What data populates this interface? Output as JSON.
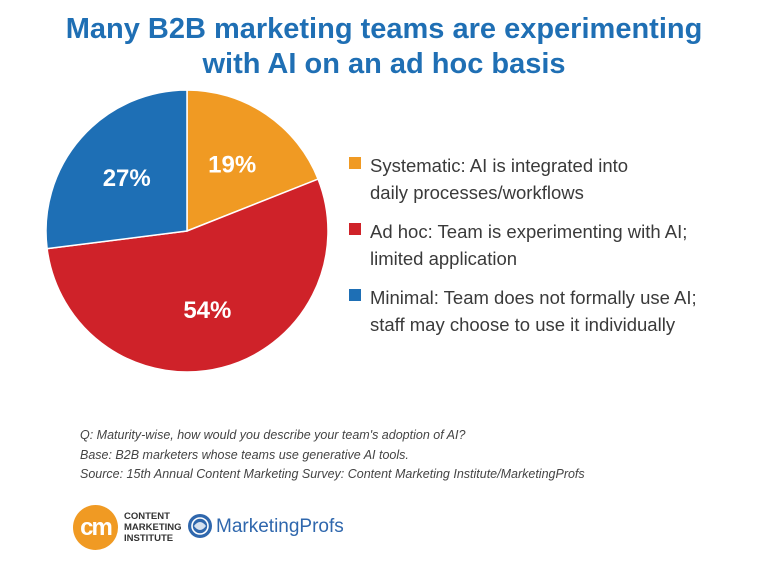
{
  "title": {
    "line1": "Many B2B marketing teams are experimenting",
    "line2": "with AI on an ad hoc basis"
  },
  "chart_data": {
    "type": "pie",
    "slices": [
      {
        "label": "Systematic",
        "value": 19,
        "display": "19%",
        "color": "#f09a23"
      },
      {
        "label": "Ad hoc",
        "value": 54,
        "display": "54%",
        "color": "#cf2229"
      },
      {
        "label": "Minimal",
        "value": 27,
        "display": "27%",
        "color": "#1e6fb5"
      }
    ],
    "legend_placement": "right"
  },
  "legend": [
    {
      "line1": "Systematic: AI is integrated into",
      "line2": "daily processes/workflows",
      "color": "#f09a23"
    },
    {
      "line1": "Ad hoc: Team is experimenting with AI;",
      "line2": "limited application",
      "color": "#cf2229"
    },
    {
      "line1": "Minimal: Team does not formally use AI;",
      "line2": "staff may choose to use it individually",
      "color": "#1e6fb5"
    }
  ],
  "notes": {
    "question": "Q: Maturity-wise, how would you describe your team's adoption of AI?",
    "base": "Base: B2B marketers whose teams use generative AI tools.",
    "source": "Source: 15th Annual Content Marketing Survey: Content Marketing Institute/MarketingProfs"
  },
  "logos": {
    "cmi_mark": "cm",
    "cmi_line1": "CONTENT",
    "cmi_line2": "MARKETING",
    "cmi_line3": "INSTITUTE",
    "mp_name": "MarketingProfs"
  }
}
